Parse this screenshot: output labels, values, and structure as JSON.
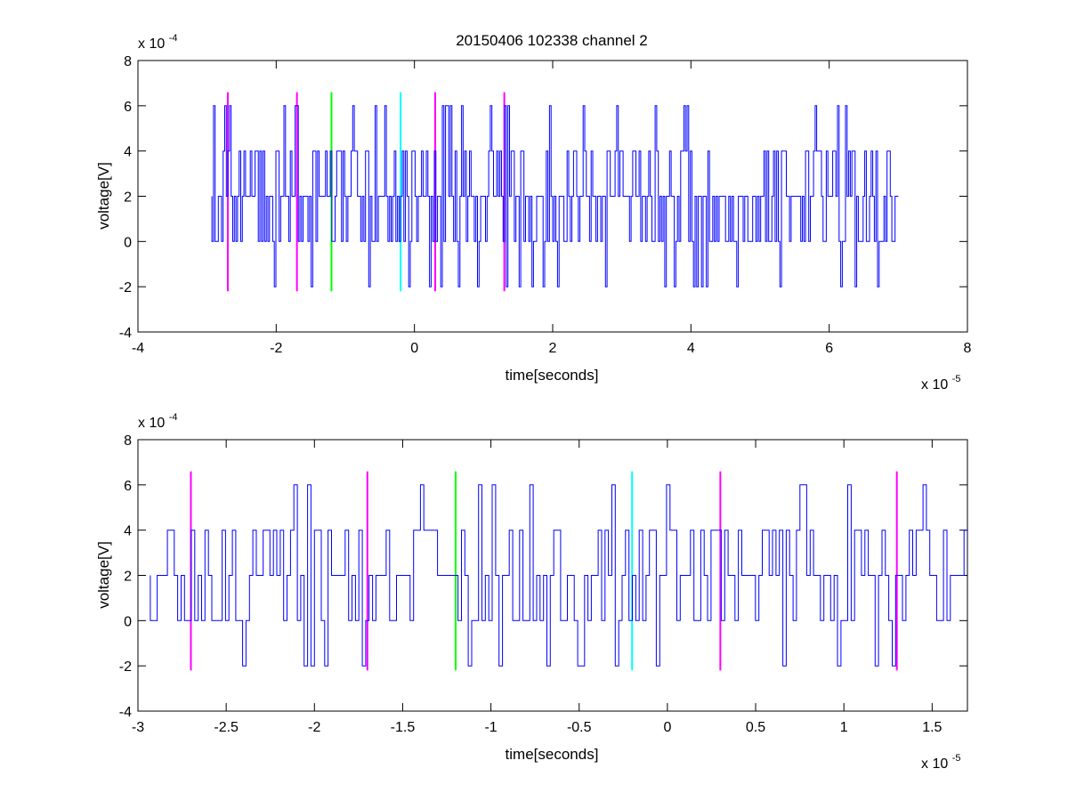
{
  "chart_data": [
    {
      "type": "line",
      "title": "20150406 102338 channel 2",
      "xlabel": "time[seconds]",
      "ylabel": "voltage[V]",
      "x_exponent_label": "x 10",
      "x_exponent": "-5",
      "y_exponent_label": "x 10",
      "y_exponent": "-4",
      "xlim": [
        -4,
        8
      ],
      "ylim": [
        -4,
        8
      ],
      "xticks": [
        -4,
        -2,
        0,
        2,
        4,
        6,
        8
      ],
      "xtick_labels": [
        "-4",
        "-2",
        "0",
        "2",
        "4",
        "6",
        "8"
      ],
      "yticks": [
        -4,
        -2,
        0,
        2,
        4,
        6,
        8
      ],
      "ytick_labels": [
        "-4",
        "-2",
        "0",
        "2",
        "4",
        "6",
        "8"
      ],
      "grid": false,
      "series": [
        {
          "color": "#0000ff",
          "signal": {
            "x_start": -2.93,
            "x_end": 7.0,
            "levels": [
              -2,
              0,
              2,
              4,
              6
            ],
            "baseline": 2,
            "note": "quantized noise signal in steps of 2"
          }
        }
      ],
      "markers": [
        {
          "x": -2.7,
          "y_range": [
            -2.2,
            6.6
          ],
          "color": "#ff00ff"
        },
        {
          "x": -1.7,
          "y_range": [
            -2.2,
            6.6
          ],
          "color": "#ff00ff"
        },
        {
          "x": -1.2,
          "y_range": [
            -2.2,
            6.6
          ],
          "color": "#00ff00"
        },
        {
          "x": -0.2,
          "y_range": [
            -2.2,
            6.6
          ],
          "color": "#00ffff"
        },
        {
          "x": 0.3,
          "y_range": [
            -2.2,
            6.6
          ],
          "color": "#ff00ff"
        },
        {
          "x": 1.3,
          "y_range": [
            -2.2,
            6.6
          ],
          "color": "#ff00ff"
        }
      ]
    },
    {
      "type": "line",
      "title": "",
      "xlabel": "time[seconds]",
      "ylabel": "voltage[V]",
      "x_exponent_label": "x 10",
      "x_exponent": "-5",
      "y_exponent_label": "x 10",
      "y_exponent": "-4",
      "xlim": [
        -3.0,
        1.7
      ],
      "ylim": [
        -4,
        8
      ],
      "xticks": [
        -3,
        -2.5,
        -2,
        -1.5,
        -1,
        -0.5,
        0,
        0.5,
        1,
        1.5
      ],
      "xtick_labels": [
        "-3",
        "-2.5",
        "-2",
        "-1.5",
        "-1",
        "-0.5",
        "0",
        "0.5",
        "1",
        "1.5"
      ],
      "yticks": [
        -4,
        -2,
        0,
        2,
        4,
        6,
        8
      ],
      "ytick_labels": [
        "-4",
        "-2",
        "0",
        "2",
        "4",
        "6",
        "8"
      ],
      "grid": false,
      "series": [
        {
          "color": "#0000ff",
          "signal": {
            "x_start": -2.93,
            "x_end": 1.7,
            "levels": [
              -2,
              0,
              2,
              4,
              6
            ],
            "baseline": 2,
            "note": "zoomed view of the same quantized signal"
          }
        }
      ],
      "markers": [
        {
          "x": -2.7,
          "y_range": [
            -2.2,
            6.6
          ],
          "color": "#ff00ff"
        },
        {
          "x": -1.7,
          "y_range": [
            -2.2,
            6.6
          ],
          "color": "#ff00ff"
        },
        {
          "x": -1.2,
          "y_range": [
            -2.2,
            6.6
          ],
          "color": "#00ff00"
        },
        {
          "x": -0.2,
          "y_range": [
            -2.2,
            6.6
          ],
          "color": "#00ffff"
        },
        {
          "x": 0.3,
          "y_range": [
            -2.2,
            6.6
          ],
          "color": "#ff00ff"
        },
        {
          "x": 1.3,
          "y_range": [
            -2.2,
            6.6
          ],
          "color": "#ff00ff"
        }
      ]
    }
  ]
}
